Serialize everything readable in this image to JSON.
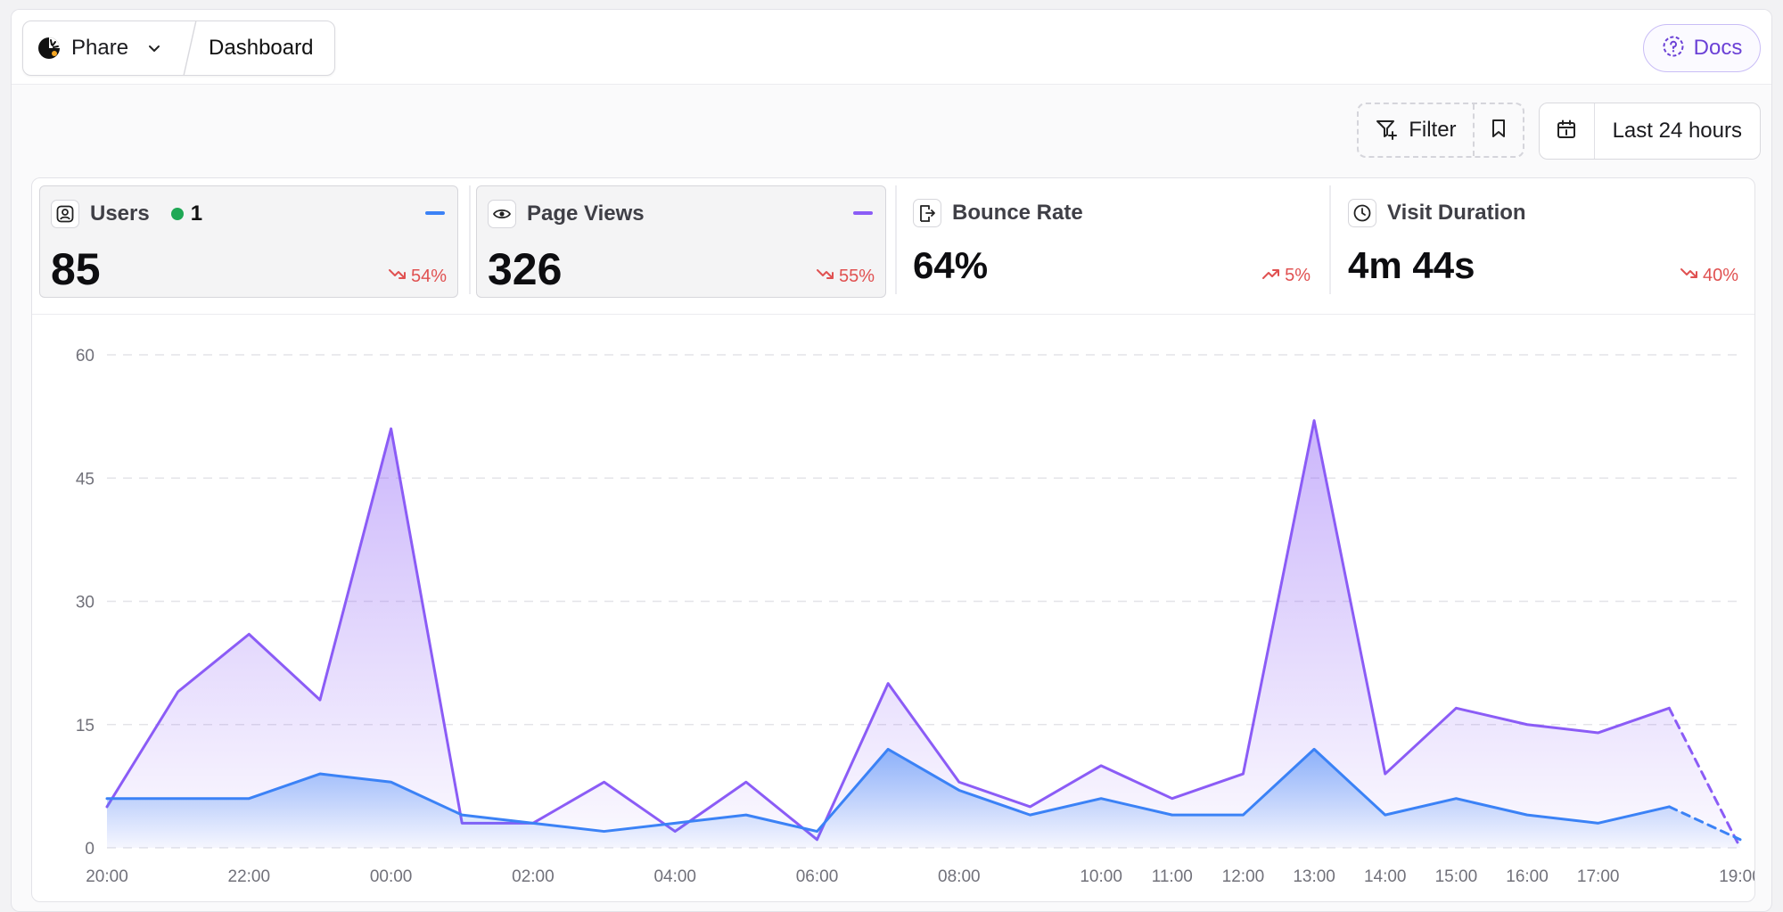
{
  "breadcrumb": {
    "app_name": "Phare",
    "page": "Dashboard"
  },
  "header": {
    "docs_label": "Docs"
  },
  "toolbar": {
    "filter_label": "Filter",
    "range_label": "Last 24 hours"
  },
  "stats": [
    {
      "label": "Users",
      "value": "85",
      "change": "54%",
      "trend": "down",
      "icon": "user-square-icon",
      "live_count": "1",
      "series_color": "#3b82f6"
    },
    {
      "label": "Page Views",
      "value": "326",
      "change": "55%",
      "trend": "down",
      "icon": "eye-icon",
      "series_color": "#8b5cf6"
    },
    {
      "label": "Bounce Rate",
      "value": "64%",
      "change": "5%",
      "trend": "up",
      "icon": "door-exit-icon"
    },
    {
      "label": "Visit Duration",
      "value": "4m 44s",
      "change": "40%",
      "trend": "down",
      "icon": "clock-icon"
    }
  ],
  "colors": {
    "accent": "#6b41d6",
    "users": "#3b82f6",
    "page_views": "#8b5cf6",
    "negative": "#e05151",
    "live": "#1fa855"
  },
  "chart_data": {
    "type": "area",
    "x_ticks": [
      "20:00",
      "22:00",
      "00:00",
      "02:00",
      "04:00",
      "06:00",
      "08:00",
      "10:00",
      "11:00",
      "12:00",
      "13:00",
      "14:00",
      "15:00",
      "16:00",
      "17:00",
      "19:00"
    ],
    "y_ticks": [
      0,
      15,
      30,
      45,
      60
    ],
    "ylim": [
      0,
      60
    ],
    "grid": true,
    "x": [
      "20:00",
      "21:00",
      "22:00",
      "23:00",
      "00:00",
      "01:00",
      "02:00",
      "03:00",
      "04:00",
      "05:00",
      "06:00",
      "07:00",
      "08:00",
      "09:00",
      "10:00",
      "11:00",
      "12:00",
      "13:00",
      "14:00",
      "15:00",
      "16:00",
      "17:00",
      "18:00",
      "19:00"
    ],
    "series": [
      {
        "key": "page_views",
        "color": "#8b5cf6",
        "values": [
          5,
          19,
          26,
          18,
          51,
          3,
          3,
          8,
          2,
          8,
          1,
          20,
          8,
          5,
          10,
          6,
          9,
          52,
          9,
          17,
          15,
          14,
          17,
          0
        ],
        "dashed_last_segment": true
      },
      {
        "key": "users",
        "color": "#3b82f6",
        "values": [
          6,
          6,
          6,
          9,
          8,
          4,
          3,
          2,
          3,
          4,
          2,
          12,
          7,
          4,
          6,
          4,
          4,
          12,
          4,
          6,
          4,
          3,
          5,
          1
        ],
        "dashed_last_segment": true
      }
    ]
  }
}
